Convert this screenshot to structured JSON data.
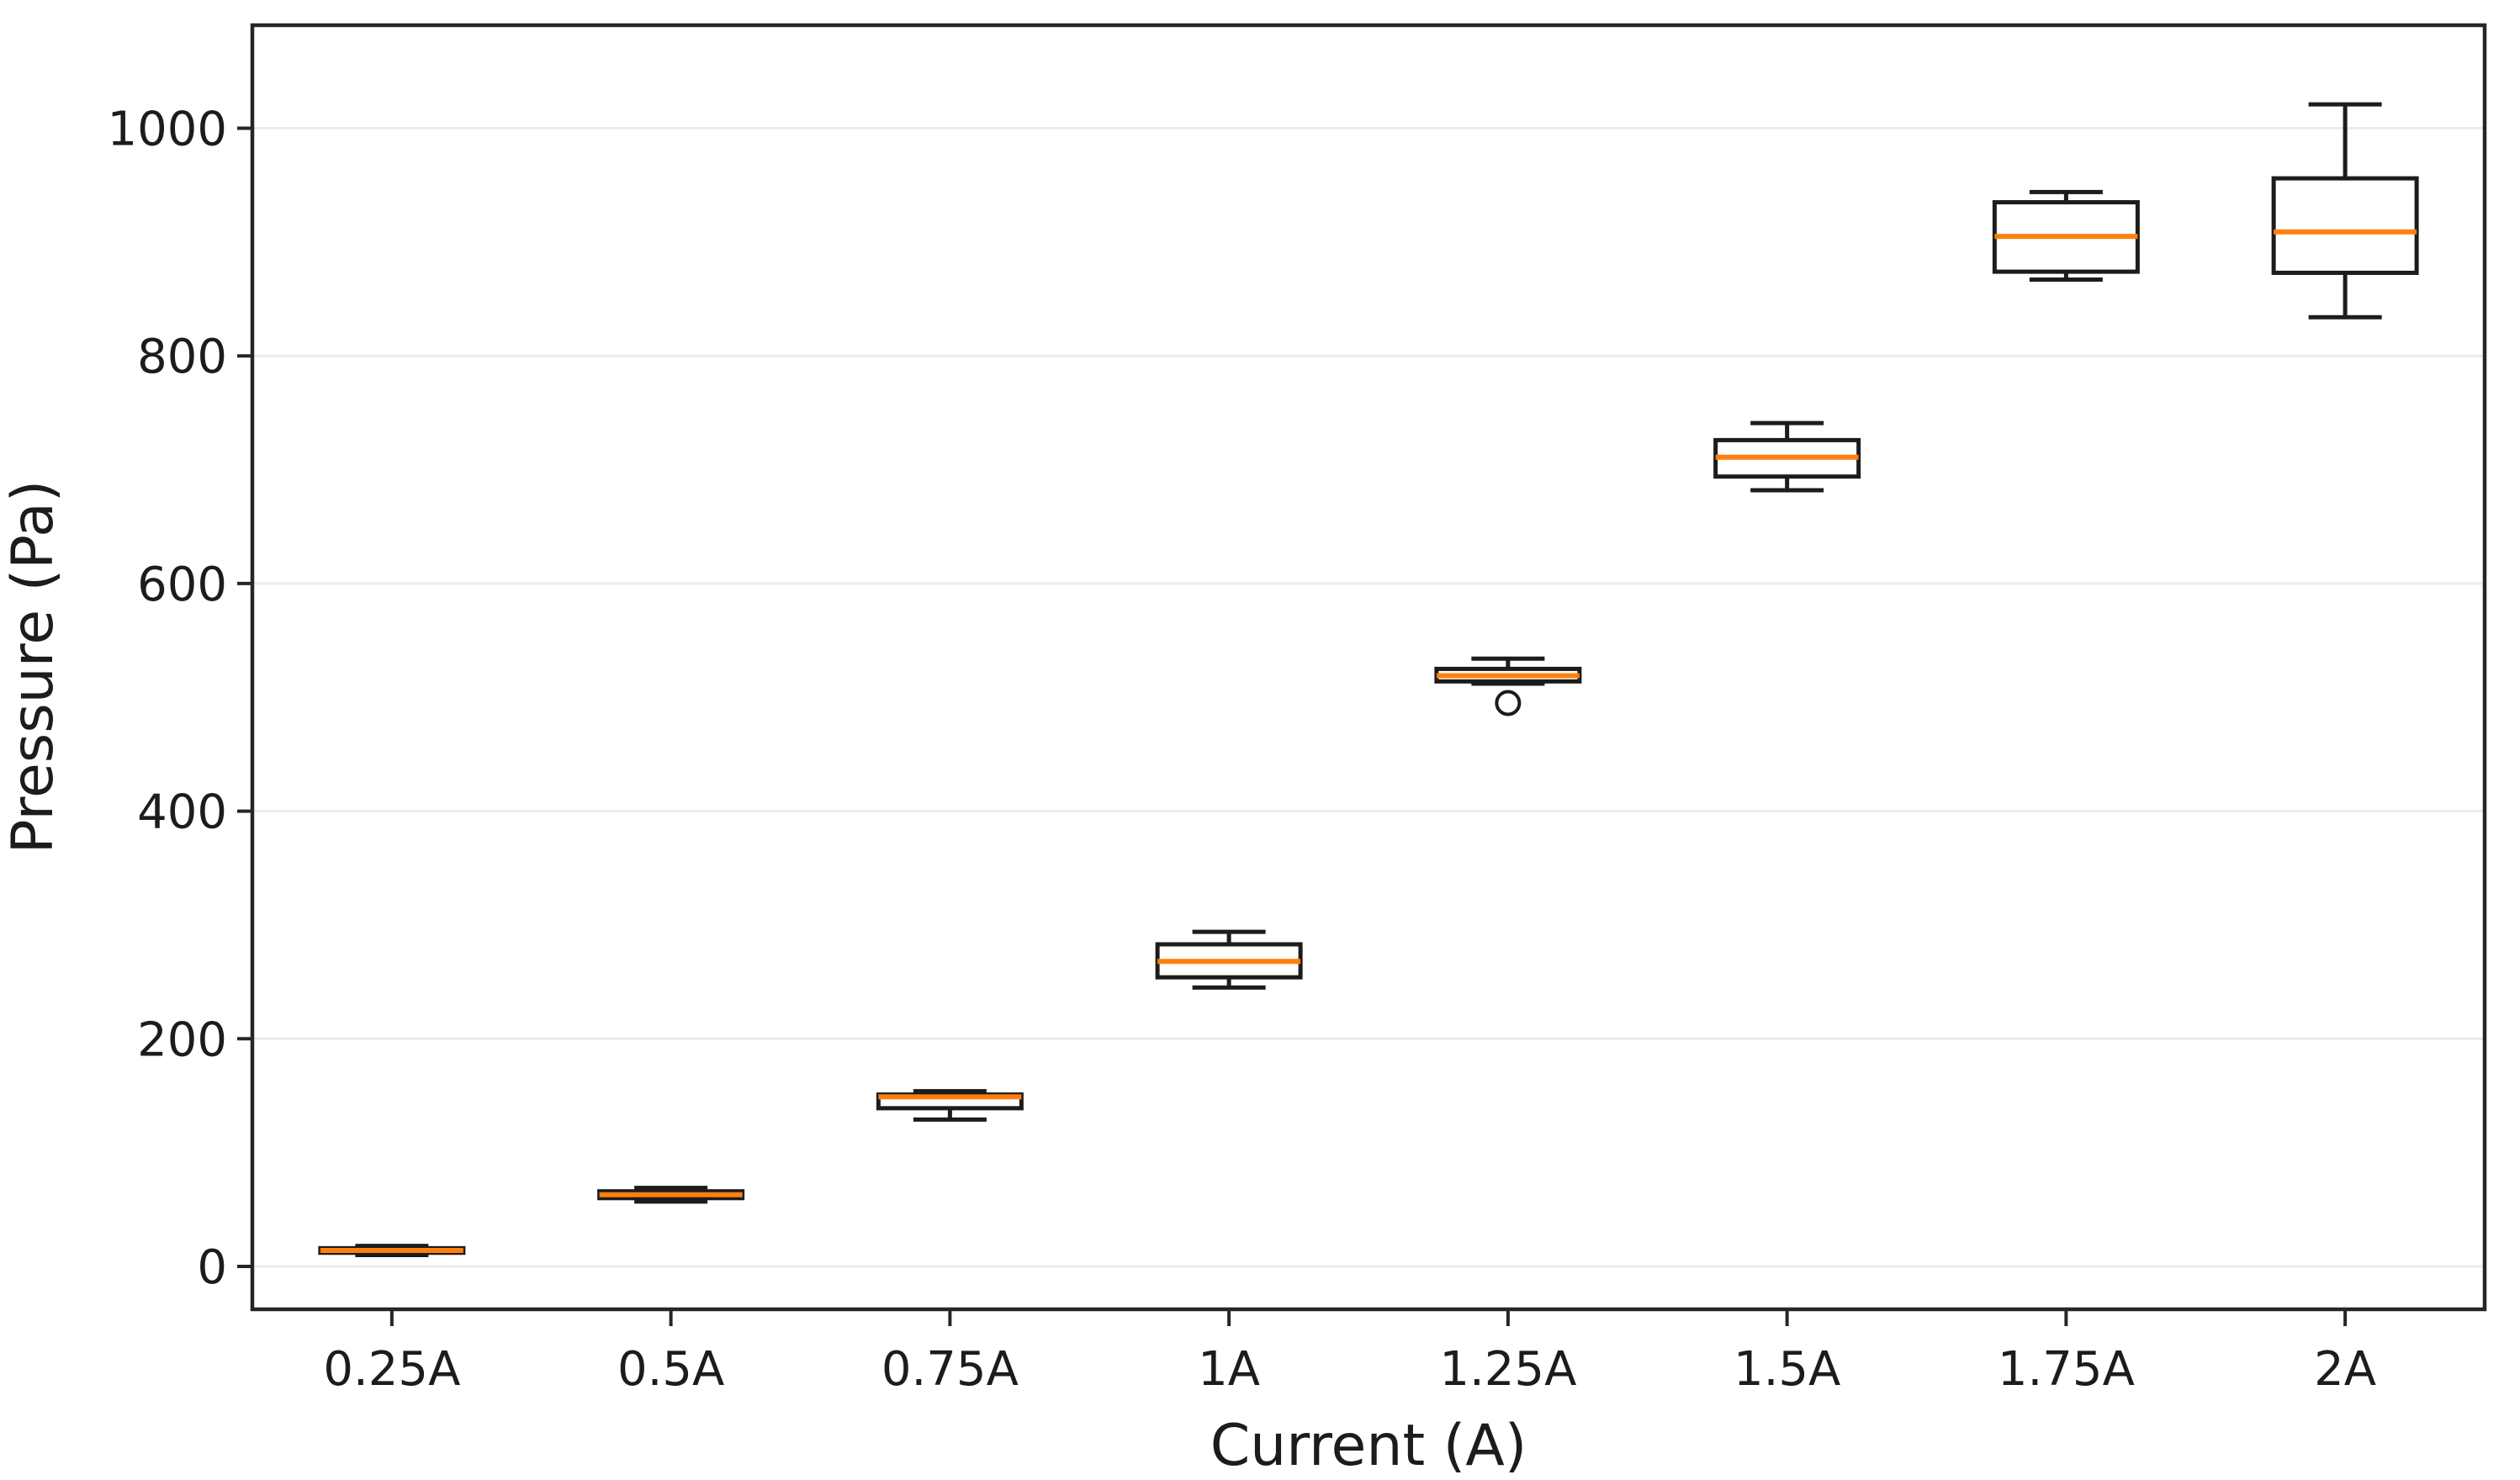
{
  "chart_data": {
    "type": "boxplot",
    "xlabel": "Current (A)",
    "ylabel": "Pressure (Pa)",
    "categories": [
      "0.25A",
      "0.5A",
      "0.75A",
      "1A",
      "1.25A",
      "1.5A",
      "1.75A",
      "2A"
    ],
    "yticks": [
      0,
      200,
      400,
      600,
      800,
      1000
    ],
    "ylim": [
      -38,
      1091
    ],
    "grid": "horizontal",
    "legend": "none",
    "colors": {
      "median": "#ff7f0e",
      "box_line": "#1c1c1c",
      "gridline": "#ebebeb",
      "spine": "#262626",
      "background": "#ffffff"
    },
    "series": [
      {
        "label": "0.25A",
        "whislo": 10,
        "q1": 12,
        "med": 14,
        "q3": 16,
        "whishi": 18,
        "fliers": []
      },
      {
        "label": "0.5A",
        "whislo": 57,
        "q1": 60,
        "med": 63,
        "q3": 66,
        "whishi": 69,
        "fliers": []
      },
      {
        "label": "0.75A",
        "whislo": 129,
        "q1": 139,
        "med": 149,
        "q3": 151,
        "whishi": 154,
        "fliers": []
      },
      {
        "label": "1A",
        "whislo": 245,
        "q1": 254,
        "med": 268,
        "q3": 283,
        "whishi": 294,
        "fliers": []
      },
      {
        "label": "1.25A",
        "whislo": 512,
        "q1": 514,
        "med": 519,
        "q3": 525,
        "whishi": 534,
        "fliers": [
          495
        ]
      },
      {
        "label": "1.5A",
        "whislo": 682,
        "q1": 694,
        "med": 711,
        "q3": 726,
        "whishi": 741,
        "fliers": []
      },
      {
        "label": "1.75A",
        "whislo": 867,
        "q1": 874,
        "med": 905,
        "q3": 935,
        "whishi": 944,
        "fliers": []
      },
      {
        "label": "2A",
        "whislo": 834,
        "q1": 873,
        "med": 909,
        "q3": 956,
        "whishi": 1021,
        "fliers": []
      }
    ]
  }
}
